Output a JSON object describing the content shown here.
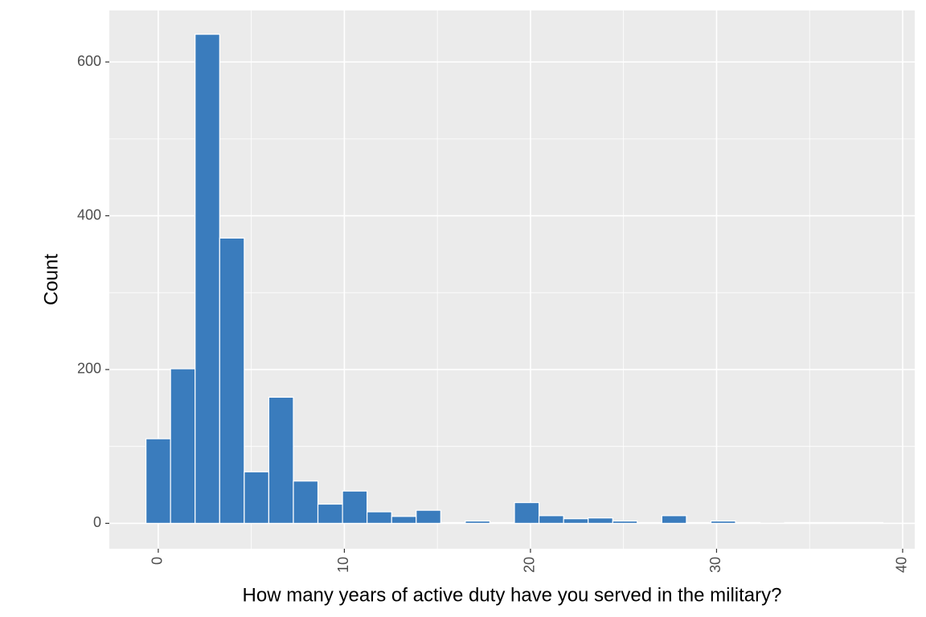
{
  "chart_data": {
    "type": "histogram",
    "x_label": "How many years of active duty have you served in the military?",
    "y_label": "Count",
    "bins": [
      -0.66,
      0.66,
      1.98,
      3.3,
      4.62,
      5.94,
      7.26,
      8.58,
      9.9,
      11.22,
      12.54,
      13.86,
      15.18,
      16.5,
      17.82,
      19.14,
      20.46,
      21.78,
      23.1,
      24.42,
      25.74,
      27.06,
      28.38,
      29.7,
      31.02,
      32.34,
      33.66,
      34.98,
      36.3,
      37.62,
      38.94
    ],
    "counts": [
      110,
      201,
      636,
      371,
      67,
      164,
      55,
      25,
      42,
      15,
      9,
      17,
      1,
      3,
      1,
      27,
      10,
      6,
      7,
      3,
      1,
      10,
      1,
      3,
      1,
      0,
      1,
      1,
      1,
      1
    ],
    "color": "#3a7cbd",
    "xlim": [
      -2.63,
      40.65
    ],
    "xticks": [
      0,
      10,
      20,
      30,
      40
    ],
    "ylim": [
      -33,
      667
    ],
    "yticks": [
      0,
      200,
      400,
      600
    ],
    "grid": true
  }
}
